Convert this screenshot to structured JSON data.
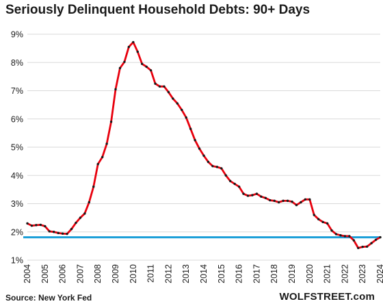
{
  "chart_data": {
    "type": "line",
    "title": "Seriously Delinquent Household Debts: 90+ Days",
    "source": "Source: New York Fed",
    "watermark": "WOLFSTREET.com",
    "xlabel": "",
    "ylabel": "",
    "ylim": [
      1,
      9
    ],
    "xlim": [
      2004,
      2024
    ],
    "y_ticks": [
      "1%",
      "2%",
      "3%",
      "4%",
      "5%",
      "6%",
      "7%",
      "8%",
      "9%"
    ],
    "x_ticks": [
      "2004",
      "2005",
      "2006",
      "2007",
      "2008",
      "2009",
      "2010",
      "2011",
      "2012",
      "2013",
      "2014",
      "2015",
      "2016",
      "2017",
      "2018",
      "2019",
      "2020",
      "2021",
      "2022",
      "2023",
      "2024"
    ],
    "grid": "horizontal",
    "line_color": "#e8000d",
    "marker_color": "#1a1a1a",
    "reference_line": {
      "value": 1.81,
      "color": "#1c9fd8"
    },
    "series": [
      {
        "x": [
          2004.0,
          2004.25,
          2004.5,
          2004.75,
          2005.0,
          2005.25,
          2005.5,
          2005.75,
          2006.0,
          2006.25,
          2006.5,
          2006.75,
          2007.0,
          2007.25,
          2007.5,
          2007.75,
          2008.0,
          2008.25,
          2008.5,
          2008.75,
          2009.0,
          2009.25,
          2009.5,
          2009.75,
          2010.0,
          2010.25,
          2010.5,
          2010.75,
          2011.0,
          2011.25,
          2011.5,
          2011.75,
          2012.0,
          2012.25,
          2012.5,
          2012.75,
          2013.0,
          2013.25,
          2013.5,
          2013.75,
          2014.0,
          2014.25,
          2014.5,
          2014.75,
          2015.0,
          2015.25,
          2015.5,
          2015.75,
          2016.0,
          2016.25,
          2016.5,
          2016.75,
          2017.0,
          2017.25,
          2017.5,
          2017.75,
          2018.0,
          2018.25,
          2018.5,
          2018.75,
          2019.0,
          2019.25,
          2019.5,
          2019.75,
          2020.0,
          2020.25,
          2020.5,
          2020.75,
          2021.0,
          2021.25,
          2021.5,
          2021.75,
          2022.0,
          2022.25,
          2022.5,
          2022.75,
          2023.0,
          2023.25,
          2023.5,
          2023.75,
          2024.0
        ],
        "values": [
          2.3,
          2.22,
          2.24,
          2.25,
          2.2,
          2.02,
          2.0,
          1.96,
          1.94,
          1.93,
          2.1,
          2.32,
          2.5,
          2.65,
          3.05,
          3.6,
          4.4,
          4.65,
          5.12,
          5.9,
          7.05,
          7.8,
          8.02,
          8.55,
          8.72,
          8.38,
          7.95,
          7.85,
          7.72,
          7.25,
          7.15,
          7.15,
          6.95,
          6.72,
          6.55,
          6.32,
          6.05,
          5.65,
          5.25,
          4.95,
          4.7,
          4.48,
          4.33,
          4.3,
          4.25,
          4.0,
          3.8,
          3.7,
          3.6,
          3.35,
          3.28,
          3.3,
          3.35,
          3.25,
          3.2,
          3.12,
          3.1,
          3.05,
          3.1,
          3.1,
          3.07,
          2.95,
          3.05,
          3.15,
          3.15,
          2.6,
          2.45,
          2.35,
          2.3,
          2.05,
          1.92,
          1.88,
          1.85,
          1.85,
          1.7,
          1.43,
          1.47,
          1.48,
          1.6,
          1.72,
          1.81
        ]
      }
    ]
  }
}
